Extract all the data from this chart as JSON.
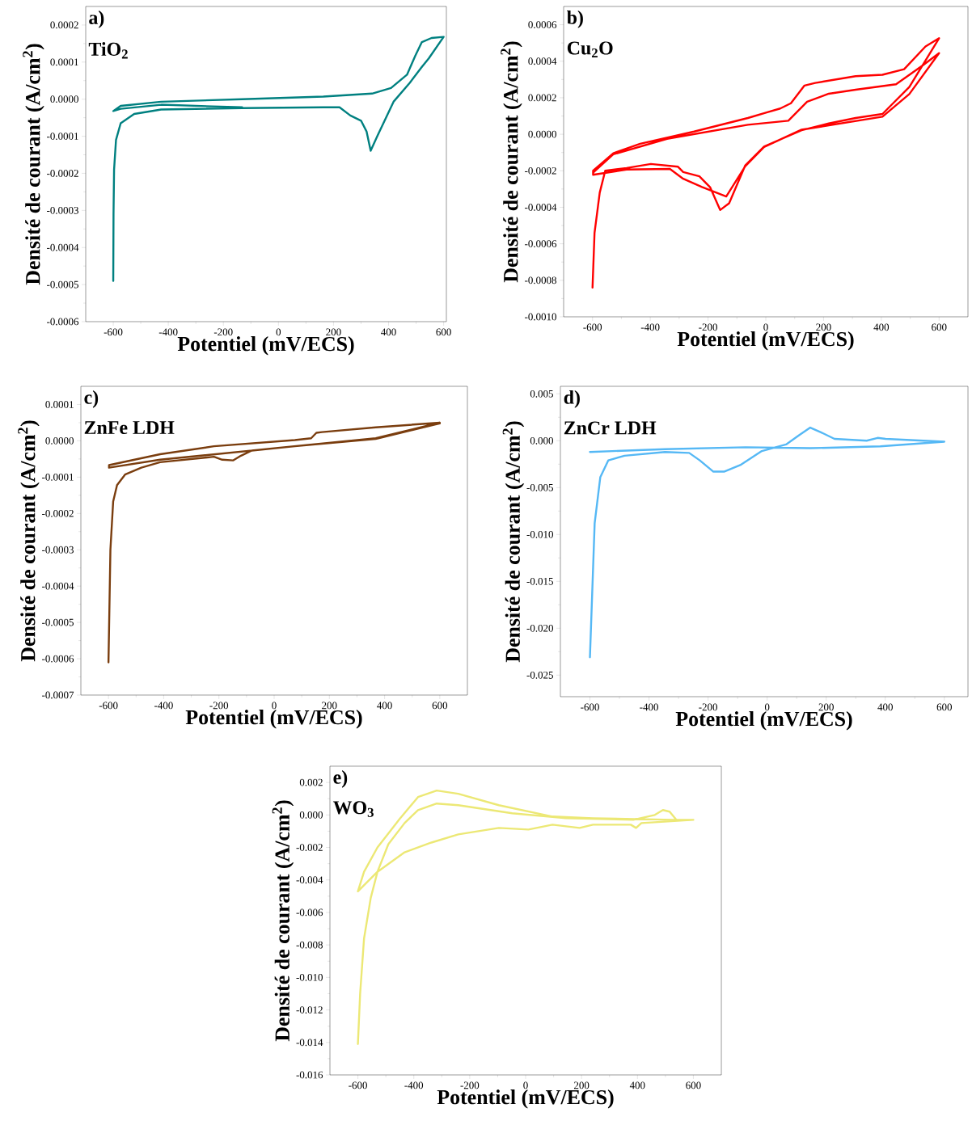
{
  "chart_data": [
    {
      "type": "line",
      "xlabel": "Potentiel (mV/ECS)",
      "ylabel": "Densité de courant (A/cm$^{2}$)",
      "annotations": [
        "a)",
        "TiO$_{2}$"
      ],
      "xlim": [
        -700,
        610
      ],
      "ylim": [
        -0.0006,
        0.00025
      ],
      "xticks": [
        -600,
        -400,
        -200,
        0,
        200,
        400,
        600
      ],
      "yticks": [
        {
          "value": -0.0006,
          "label": "-0.0006"
        },
        {
          "value": -0.0005,
          "label": "-0.0005"
        },
        {
          "value": -0.0004,
          "label": "-0.0004"
        },
        {
          "value": -0.0003,
          "label": "-0.0003"
        },
        {
          "value": -0.0002,
          "label": "-0.0002"
        },
        {
          "value": -0.0001,
          "label": "-0.0001"
        },
        {
          "value": 0,
          "label": "0.0000"
        },
        {
          "value": 0.0001,
          "label": "0.0001"
        },
        {
          "value": 0.0002,
          "label": "0.0002"
        }
      ],
      "series": [
        {
          "color": "#008080",
          "x": [
            -600,
            -599,
            -597,
            -590,
            -573,
            -524,
            -426,
            -132,
            163,
            222,
            261,
            300,
            320,
            335,
            359,
            418,
            477,
            521,
            546,
            600,
            556,
            521,
            497,
            467,
            409,
            340,
            163,
            -132,
            -426,
            -573,
            -600,
            -573,
            -426,
            -132
          ],
          "values": [
            -0.00049,
            -0.00031,
            -0.00019,
            -0.00011,
            -6.5e-05,
            -4e-05,
            -2.8e-05,
            -2.4e-05,
            -2.2e-05,
            -2.2e-05,
            -4.4e-05,
            -5.8e-05,
            -8.7e-05,
            -0.000139,
            -0.0001,
            -7e-06,
            4.4e-05,
            8.7e-05,
            0.00011,
            0.000168,
            0.000165,
            0.000154,
            0.000117,
            6.6e-05,
            3e-05,
            1.5e-05,
            7e-06,
            0,
            -7e-06,
            -1.8e-05,
            -3.2e-05,
            -2.6e-05,
            -1.5e-05,
            -2.2e-05
          ]
        }
      ]
    },
    {
      "type": "line",
      "xlabel": "Potentiel (mV/ECS)",
      "ylabel": "Densité de courant (A/cm$^{2}$)",
      "annotations": [
        "b)",
        "Cu$_{2}$O"
      ],
      "xlim": [
        -700,
        700
      ],
      "ylim": [
        -0.001,
        0.0007
      ],
      "xticks": [
        -600,
        -400,
        -200,
        0,
        200,
        400,
        600
      ],
      "yticks": [
        {
          "value": -0.001,
          "label": "-0.0010"
        },
        {
          "value": -0.0008,
          "label": "-0.0008"
        },
        {
          "value": -0.0006,
          "label": "-0.0006"
        },
        {
          "value": -0.0004,
          "label": "-0.0004"
        },
        {
          "value": -0.0002,
          "label": "-0.0002"
        },
        {
          "value": 0,
          "label": "0.0000"
        },
        {
          "value": 0.0002,
          "label": "0.0002"
        },
        {
          "value": 0.0004,
          "label": "0.0004"
        },
        {
          "value": 0.0006,
          "label": "0.0006"
        }
      ],
      "series": [
        {
          "color": "#ff0000",
          "x": [
            -600,
            -593,
            -575,
            -556,
            -482,
            -398,
            -304,
            -286,
            -230,
            -193,
            -158,
            -127,
            -71,
            -6,
            124,
            218,
            311,
            404,
            497,
            600,
            553,
            479,
            404,
            311,
            171,
            134,
            87,
            50,
            3,
            -62,
            -248,
            -435,
            -528,
            -598,
            -598,
            -482,
            -332,
            -286,
            -221,
            -137,
            -71,
            -6,
            124,
            404,
            497,
            600,
            544,
            451,
            311,
            218,
            143,
            78,
            -62,
            -342,
            -528,
            -598
          ],
          "values": [
            -0.00084,
            -0.00054,
            -0.00032,
            -0.0002,
            -0.000185,
            -0.000163,
            -0.000178,
            -0.000207,
            -0.00023,
            -0.00029,
            -0.000415,
            -0.000378,
            -0.00017,
            -6.7e-05,
            2.2e-05,
            5.9e-05,
            8.9e-05,
            0.000111,
            0.000259,
            0.000526,
            0.000481,
            0.000356,
            0.000326,
            0.000318,
            0.000281,
            0.000267,
            0.00017,
            0.000141,
            0.000119,
            8.9e-05,
            1.5e-05,
            -5.2e-05,
            -0.000104,
            -0.0002,
            -0.000222,
            -0.000193,
            -0.00019,
            -0.000244,
            -0.000289,
            -0.000341,
            -0.000175,
            -7e-05,
            2.5e-05,
            9.6e-05,
            0.00022,
            0.000444,
            0.000378,
            0.000274,
            0.000244,
            0.000222,
            0.000178,
            7.4e-05,
            5.2e-05,
            -2.5e-05,
            -0.00011,
            -0.00021
          ]
        }
      ]
    },
    {
      "type": "line",
      "xlabel": "Potentiel (mV/ECS)",
      "ylabel": "Densité de courant (A/cm$^{2}$)",
      "annotations": [
        "c)",
        "ZnFe LDH"
      ],
      "xlim": [
        -700,
        700
      ],
      "ylim": [
        -0.0007,
        0.00015
      ],
      "xticks": [
        -600,
        -400,
        -200,
        0,
        200,
        400,
        600
      ],
      "yticks": [
        {
          "value": -0.0007,
          "label": "-0.0007"
        },
        {
          "value": -0.0006,
          "label": "-0.0006"
        },
        {
          "value": -0.0005,
          "label": "-0.0005"
        },
        {
          "value": -0.0004,
          "label": "-0.0004"
        },
        {
          "value": -0.0003,
          "label": "-0.0003"
        },
        {
          "value": -0.0002,
          "label": "-0.0002"
        },
        {
          "value": -0.0001,
          "label": "-0.0001"
        },
        {
          "value": 0,
          "label": "0.0000"
        },
        {
          "value": 0.0001,
          "label": "0.0001"
        }
      ],
      "series": [
        {
          "color": "#7a3d0e",
          "x": [
            -600,
            -593,
            -583,
            -569,
            -540,
            -481,
            -413,
            -218,
            -188,
            -149,
            -120,
            -81,
            124,
            368,
            600,
            368,
            173,
            153,
            134,
            75,
            -218,
            -413,
            -598,
            -598,
            -413,
            75,
            368,
            600
          ],
          "values": [
            -0.00061,
            -0.0003,
            -0.000167,
            -0.000122,
            -9.3e-05,
            -7.4e-05,
            -5.9e-05,
            -4.4e-05,
            -5.2e-05,
            -5.4e-05,
            -4.1e-05,
            -2.7e-05,
            -1.1e-05,
            7e-06,
            5e-05,
            3.7e-05,
            2.4e-05,
            2.2e-05,
            7e-06,
            2e-06,
            -1.5e-05,
            -3.7e-05,
            -6.7e-05,
            -7.4e-05,
            -5.2e-05,
            -1.5e-05,
            5e-06,
            4.8e-05
          ]
        }
      ]
    },
    {
      "type": "line",
      "xlabel": "Potentiel (mV/ECS)",
      "ylabel": "Densité de courant (A/cm$^{2}$)",
      "annotations": [
        "d)",
        "ZnCr LDH"
      ],
      "xlim": [
        -700,
        680
      ],
      "ylim": [
        -0.0273,
        0.0058
      ],
      "xticks": [
        -600,
        -400,
        -200,
        0,
        200,
        400,
        600
      ],
      "yticks": [
        {
          "value": -0.025,
          "label": "-0.025"
        },
        {
          "value": -0.02,
          "label": "-0.020"
        },
        {
          "value": -0.015,
          "label": "-0.015"
        },
        {
          "value": -0.01,
          "label": "-0.010"
        },
        {
          "value": -0.005,
          "label": "-0.005"
        },
        {
          "value": 0,
          "label": "0.000"
        },
        {
          "value": 0.005,
          "label": "0.005"
        }
      ],
      "series": [
        {
          "color": "#55b8f5",
          "x": [
            -600,
            -584,
            -565,
            -538,
            -483,
            -346,
            -264,
            -228,
            -182,
            -146,
            -91,
            -18,
            64,
            109,
            146,
            182,
            228,
            337,
            374,
            401,
            600,
            383,
            146,
            -73,
            -346,
            -600
          ],
          "values": [
            -0.0231,
            -0.0088,
            -0.0039,
            -0.0021,
            -0.0016,
            -0.0012,
            -0.0013,
            -0.0021,
            -0.0033,
            -0.0033,
            -0.0026,
            -0.0011,
            -0.0004,
            0.0006,
            0.0014,
            0.0009,
            0.0002,
            0.0,
            0.0003,
            0.0002,
            -0.0001,
            -0.0006,
            -0.0008,
            -0.0007,
            -0.0009,
            -0.0012
          ]
        }
      ]
    },
    {
      "type": "line",
      "xlabel": "Potentiel (mV/ECS)",
      "ylabel": "Densité de courant (A/cm$^{2}$)",
      "annotations": [
        "e)",
        "WO$_{3}$"
      ],
      "xlim": [
        -700,
        700
      ],
      "ylim": [
        -0.016,
        0.003
      ],
      "xticks": [
        -600,
        -400,
        -200,
        0,
        200,
        400,
        600
      ],
      "yticks": [
        {
          "value": -0.016,
          "label": "-0.016"
        },
        {
          "value": -0.014,
          "label": "-0.014"
        },
        {
          "value": -0.012,
          "label": "-0.012"
        },
        {
          "value": -0.01,
          "label": "-0.010"
        },
        {
          "value": -0.008,
          "label": "-0.008"
        },
        {
          "value": -0.006,
          "label": "-0.006"
        },
        {
          "value": -0.004,
          "label": "-0.004"
        },
        {
          "value": -0.002,
          "label": "-0.002"
        },
        {
          "value": 0,
          "label": "0.000"
        },
        {
          "value": 0.002,
          "label": "0.002"
        }
      ],
      "series": [
        {
          "color": "#ece875",
          "x": [
            -600,
            -592,
            -578,
            -554,
            -530,
            -491,
            -433,
            -385,
            -318,
            -241,
            -48,
            144,
            385,
            462,
            491,
            515,
            539,
            600,
            414,
            395,
            376,
            241,
            193,
            96,
            10,
            -96,
            -241,
            -337,
            -433,
            -530,
            -600,
            -578,
            -530,
            -453,
            -385,
            -318,
            -241,
            -96,
            96,
            241,
            530,
            600
          ],
          "values": [
            -0.0141,
            -0.011,
            -0.0076,
            -0.0051,
            -0.0035,
            -0.0018,
            -0.0005,
            0.0003,
            0.0007,
            0.0006,
            0.0001,
            -0.0002,
            -0.0003,
            0.0,
            0.0003,
            0.0002,
            -0.0003,
            -0.0003,
            -0.0005,
            -0.0008,
            -0.0006,
            -0.0006,
            -0.0008,
            -0.0006,
            -0.0009,
            -0.0008,
            -0.0012,
            -0.0017,
            -0.0023,
            -0.0035,
            -0.0047,
            -0.0035,
            -0.002,
            -0.0003,
            0.0011,
            0.0015,
            0.0013,
            0.0006,
            -0.0001,
            -0.0002,
            -0.0003,
            -0.0003
          ]
        }
      ]
    }
  ]
}
